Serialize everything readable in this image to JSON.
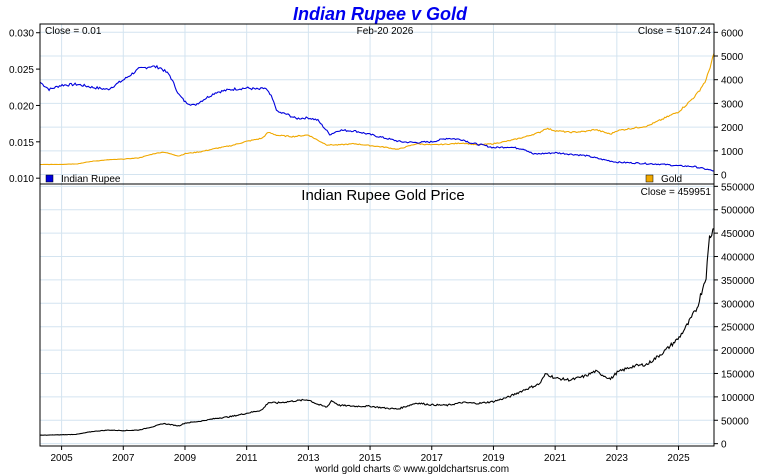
{
  "title": "Indian Rupee v Gold",
  "footer": "world gold charts © www.goldchartsrus.com",
  "colors": {
    "title": "#0000ee",
    "rupee": "#0000dd",
    "gold": "#f0a800",
    "price": "#000000",
    "grid": "#d4e4f0",
    "frame": "#000000"
  },
  "chart_data": [
    {
      "type": "line",
      "title": "Indian Rupee v Gold",
      "date_label": "Feb-20  2026",
      "x_ticks": [
        "2005",
        "2007",
        "2009",
        "2011",
        "2013",
        "2015",
        "2017",
        "2019",
        "2021",
        "2023",
        "2025"
      ],
      "x_range": [
        2004.3,
        2026.15
      ],
      "left_axis": {
        "ticks": [
          "0.010",
          "0.015",
          "0.020",
          "0.025",
          "0.030"
        ],
        "ylim": [
          0.0092,
          0.0312
        ]
      },
      "right_axis": {
        "ticks": [
          "0",
          "1000",
          "2000",
          "3000",
          "4000",
          "5000",
          "6000"
        ],
        "ylim": [
          -400,
          6350
        ]
      },
      "close_left": "Close = 0.01",
      "close_right": "Close = 5107.24",
      "legend": [
        {
          "label": "Indian Rupee",
          "color": "#0000dd",
          "position": "bottom-left"
        },
        {
          "label": "Gold",
          "color": "#f0a800",
          "position": "bottom-right"
        }
      ],
      "series": [
        {
          "name": "Indian Rupee",
          "axis": "left",
          "x": [
            2004.3,
            2004.6,
            2005.0,
            2005.5,
            2006.0,
            2006.5,
            2007.0,
            2007.5,
            2007.9,
            2008.2,
            2008.5,
            2008.8,
            2009.0,
            2009.3,
            2009.6,
            2010.0,
            2010.5,
            2011.0,
            2011.4,
            2011.6,
            2011.8,
            2012.0,
            2012.3,
            2012.6,
            2013.0,
            2013.3,
            2013.5,
            2013.7,
            2014.0,
            2014.5,
            2015.0,
            2015.5,
            2016.0,
            2016.5,
            2017.0,
            2017.5,
            2018.0,
            2018.3,
            2018.7,
            2019.0,
            2019.5,
            2020.0,
            2020.3,
            2021.0,
            2021.5,
            2022.0,
            2022.5,
            2023.0,
            2023.5,
            2024.0,
            2024.5,
            2025.0,
            2025.5,
            2026.15
          ],
          "values": [
            0.0232,
            0.0222,
            0.0228,
            0.0229,
            0.0225,
            0.0222,
            0.0235,
            0.025,
            0.0254,
            0.0252,
            0.0242,
            0.0215,
            0.0205,
            0.02,
            0.0208,
            0.0218,
            0.0222,
            0.0224,
            0.0222,
            0.0224,
            0.0212,
            0.0191,
            0.0188,
            0.0182,
            0.0183,
            0.018,
            0.017,
            0.016,
            0.0166,
            0.0165,
            0.016,
            0.0155,
            0.015,
            0.0149,
            0.015,
            0.0155,
            0.0153,
            0.0148,
            0.0145,
            0.0142,
            0.0143,
            0.014,
            0.0133,
            0.0135,
            0.0133,
            0.0131,
            0.0126,
            0.0122,
            0.0121,
            0.012,
            0.0119,
            0.0117,
            0.0116,
            0.011
          ]
        },
        {
          "name": "Gold",
          "axis": "right",
          "x": [
            2004.3,
            2005.0,
            2005.5,
            2006.0,
            2006.5,
            2007.0,
            2007.5,
            2008.0,
            2008.3,
            2008.8,
            2009.0,
            2009.5,
            2010.0,
            2010.5,
            2011.0,
            2011.5,
            2011.7,
            2012.0,
            2012.5,
            2013.0,
            2013.3,
            2013.6,
            2014.0,
            2014.5,
            2015.0,
            2015.5,
            2015.9,
            2016.5,
            2017.0,
            2017.5,
            2018.0,
            2018.5,
            2019.0,
            2019.5,
            2020.0,
            2020.5,
            2020.7,
            2021.0,
            2021.5,
            2022.0,
            2022.3,
            2022.8,
            2023.0,
            2023.5,
            2024.0,
            2024.5,
            2025.0,
            2025.3,
            2025.6,
            2025.9,
            2026.15
          ],
          "values": [
            420,
            430,
            450,
            560,
            620,
            650,
            700,
            880,
            950,
            780,
            880,
            960,
            1100,
            1220,
            1400,
            1530,
            1780,
            1650,
            1600,
            1670,
            1450,
            1250,
            1250,
            1300,
            1220,
            1150,
            1060,
            1300,
            1250,
            1280,
            1330,
            1250,
            1300,
            1420,
            1580,
            1780,
            1950,
            1850,
            1780,
            1820,
            1900,
            1700,
            1850,
            1950,
            2050,
            2350,
            2650,
            3000,
            3400,
            4000,
            5107
          ]
        }
      ]
    },
    {
      "type": "line",
      "title": "Indian Rupee Gold Price",
      "close_label": "Close = 459951",
      "x_ticks": [
        "2005",
        "2007",
        "2009",
        "2011",
        "2013",
        "2015",
        "2017",
        "2019",
        "2021",
        "2023",
        "2025"
      ],
      "x_range": [
        2004.3,
        2026.15
      ],
      "y_axis": {
        "ticks": [
          "0",
          "50000",
          "100000",
          "150000",
          "200000",
          "250000",
          "300000",
          "350000",
          "400000",
          "450000",
          "500000",
          "550000"
        ],
        "ylim": [
          -5000,
          555000
        ]
      },
      "series": [
        {
          "name": "Indian Rupee Gold Price",
          "x": [
            2004.3,
            2005.0,
            2005.5,
            2006.0,
            2006.5,
            2007.0,
            2007.5,
            2008.0,
            2008.3,
            2008.8,
            2009.0,
            2009.5,
            2010.0,
            2010.5,
            2011.0,
            2011.5,
            2011.7,
            2012.0,
            2012.5,
            2013.0,
            2013.3,
            2013.6,
            2013.75,
            2014.0,
            2014.5,
            2015.0,
            2015.5,
            2015.9,
            2016.5,
            2017.0,
            2017.5,
            2018.0,
            2018.5,
            2019.0,
            2019.5,
            2020.0,
            2020.5,
            2020.7,
            2021.0,
            2021.5,
            2022.0,
            2022.3,
            2022.8,
            2023.0,
            2023.5,
            2024.0,
            2024.5,
            2025.0,
            2025.3,
            2025.6,
            2025.9,
            2026.0,
            2026.15
          ],
          "values": [
            18000,
            19000,
            20000,
            26000,
            29000,
            28000,
            29000,
            37000,
            43000,
            38000,
            44000,
            48000,
            54000,
            58000,
            65000,
            72000,
            88000,
            87000,
            91000,
            94000,
            84000,
            78000,
            92000,
            82000,
            80000,
            80000,
            76000,
            74000,
            87000,
            83000,
            82000,
            88000,
            86000,
            90000,
            100000,
            115000,
            128000,
            150000,
            140000,
            136000,
            145000,
            155000,
            138000,
            152000,
            165000,
            170000,
            195000,
            225000,
            255000,
            290000,
            360000,
            440000,
            459951
          ]
        }
      ]
    }
  ]
}
